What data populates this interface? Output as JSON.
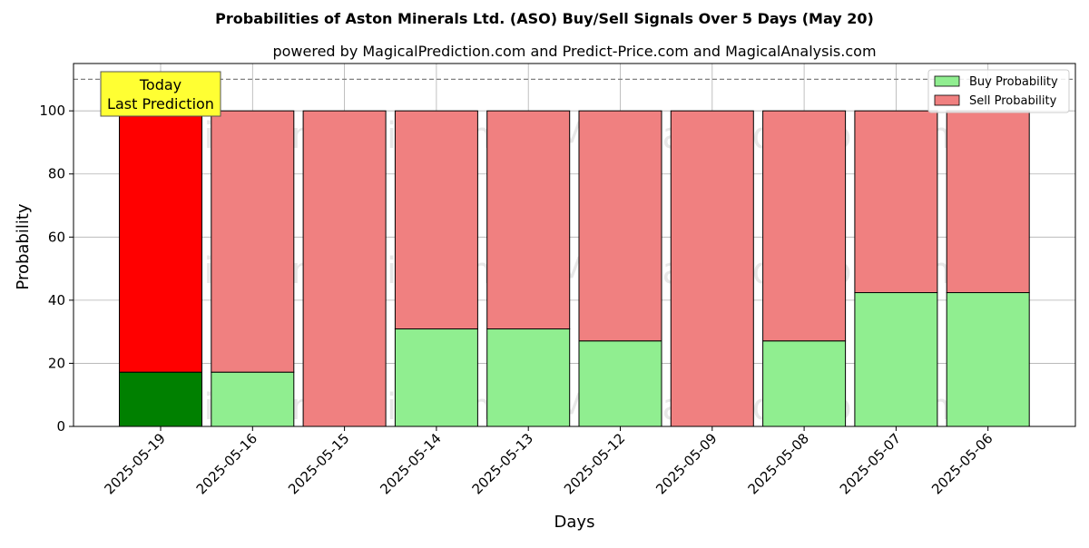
{
  "chart_data": {
    "type": "bar",
    "stacked": true,
    "title": "Probabilities of Aston Minerals Ltd. (ASO) Buy/Sell Signals Over 5 Days (May 20)",
    "subtitle": "powered by MagicalPrediction.com and Predict-Price.com and MagicalAnalysis.com",
    "xlabel": "Days",
    "ylabel": "Probability",
    "ylim": [
      0,
      115
    ],
    "yticks": [
      "0",
      "20",
      "40",
      "60",
      "80",
      "100"
    ],
    "categories": [
      "2025-05-19",
      "2025-05-16",
      "2025-05-15",
      "2025-05-14",
      "2025-05-13",
      "2025-05-12",
      "2025-05-09",
      "2025-05-08",
      "2025-05-07",
      "2025-05-06"
    ],
    "series": [
      {
        "name": "Buy Probability",
        "values": [
          17.2,
          17.2,
          0,
          30.9,
          30.9,
          27.1,
          0,
          27.1,
          42.4,
          42.4
        ]
      },
      {
        "name": "Sell Probability",
        "values": [
          82.8,
          82.8,
          100,
          69.1,
          69.1,
          72.9,
          100,
          72.9,
          57.6,
          57.6
        ]
      }
    ],
    "reference_line": 110,
    "grid": true,
    "legend_position": "top-right",
    "annotation": {
      "line1": "Today",
      "line2": "Last Prediction",
      "target_category": "2025-05-19"
    },
    "watermarks": [
      "MagicalAnalysis.com",
      "MagicalPrediction.com"
    ],
    "colors": {
      "buy": "#90ee90",
      "sell": "#f08080",
      "buy_highlight": "#008000",
      "sell_highlight": "#ff0000",
      "annotation_bg": "#ffff33",
      "grid": "#b0b0b0",
      "reference": "#808080"
    }
  }
}
